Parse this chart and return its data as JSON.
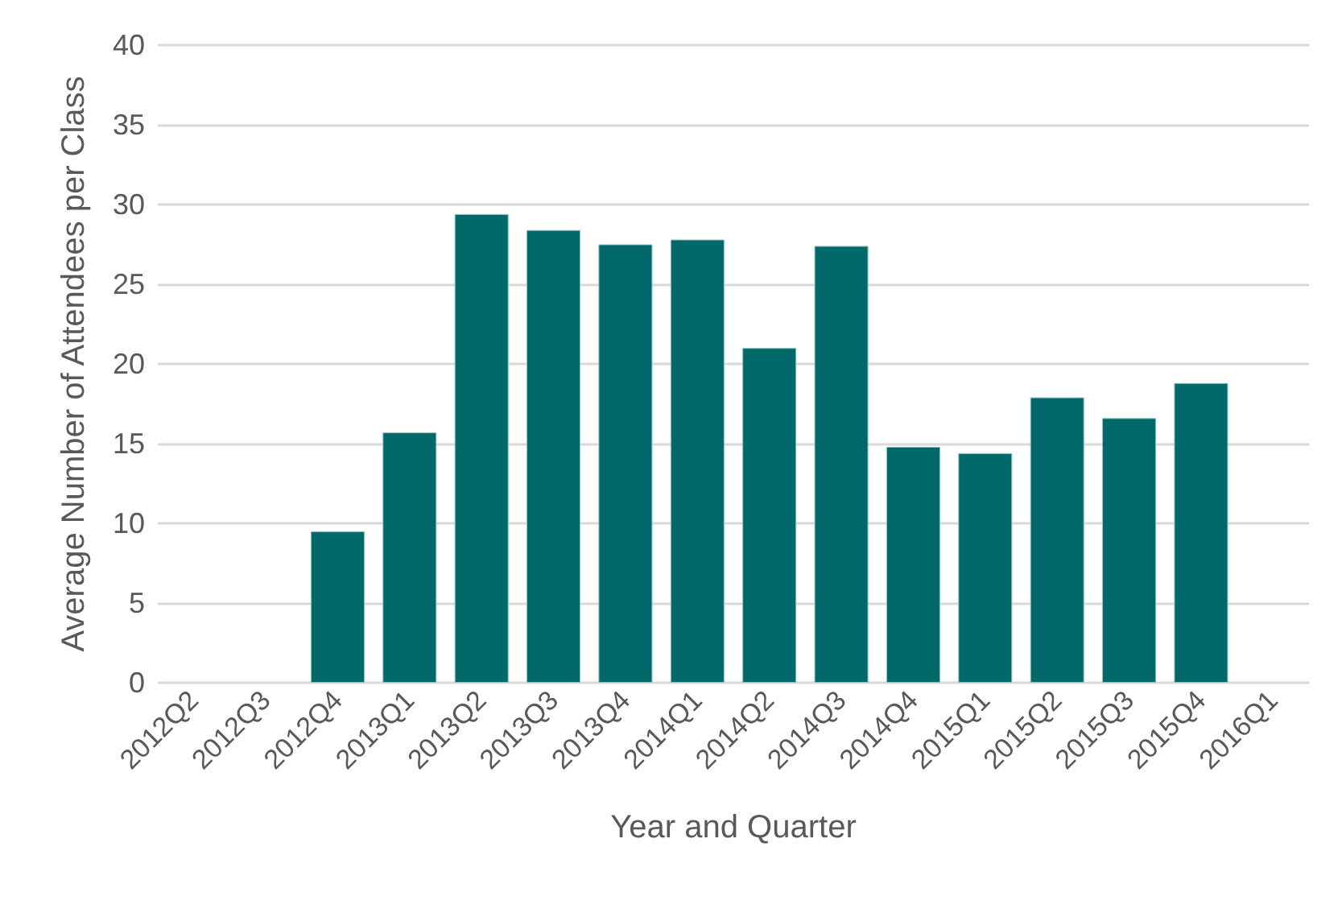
{
  "chart_data": {
    "type": "bar",
    "xlabel": "Year and Quarter",
    "ylabel": "Average Number of Attendees per Class",
    "categories": [
      "2012Q2",
      "2012Q3",
      "2012Q4",
      "2013Q1",
      "2013Q2",
      "2013Q3",
      "2013Q4",
      "2014Q1",
      "2014Q2",
      "2014Q3",
      "2014Q4",
      "2015Q1",
      "2015Q2",
      "2015Q3",
      "2015Q4",
      "2016Q1"
    ],
    "values": [
      null,
      null,
      9.5,
      15.7,
      29.4,
      28.4,
      27.5,
      27.8,
      21.0,
      27.4,
      14.8,
      14.4,
      17.9,
      16.6,
      18.8,
      null
    ],
    "color": "#02696b",
    "ylim": [
      0,
      40
    ],
    "yticks": [
      0,
      5,
      10,
      15,
      20,
      25,
      30,
      35,
      40
    ],
    "grid": "y"
  }
}
